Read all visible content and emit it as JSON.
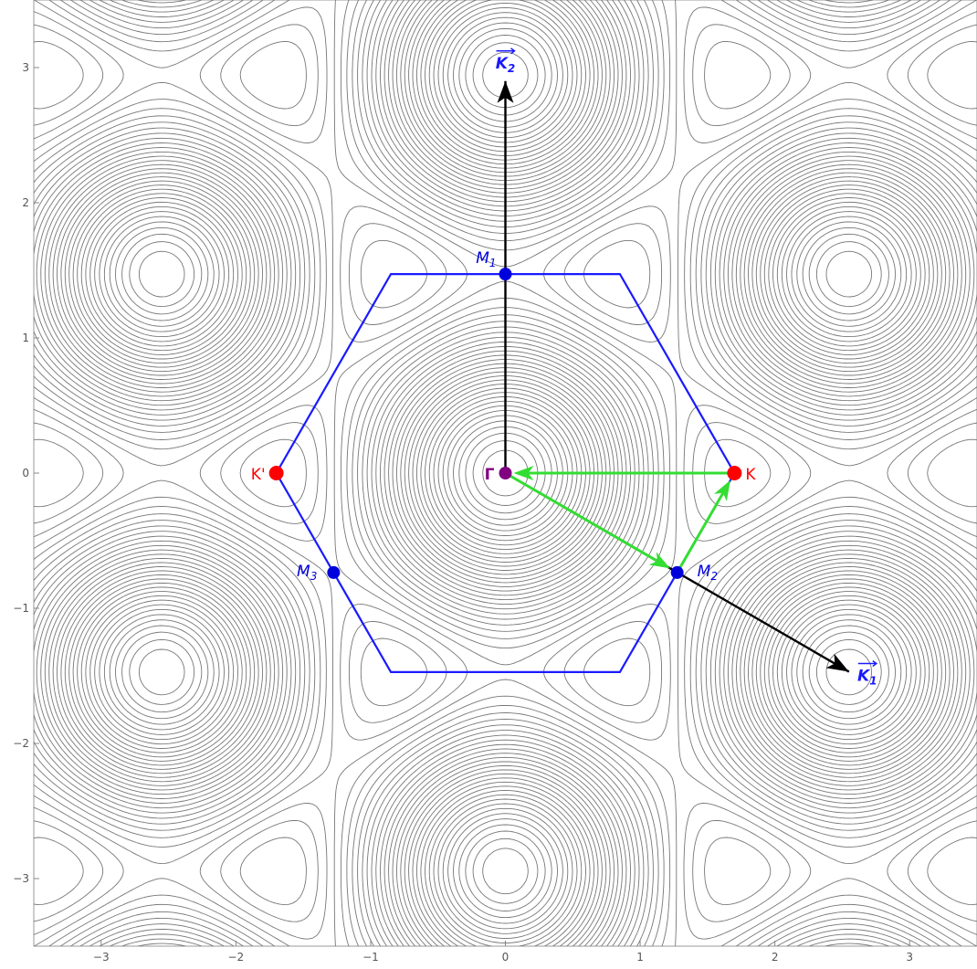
{
  "chart_data": {
    "type": "contour",
    "xlim": [
      -3.5,
      3.5
    ],
    "ylim": [
      -3.5,
      3.5
    ],
    "x_ticks": [
      -3,
      -2,
      -1,
      0,
      1,
      2,
      3
    ],
    "y_ticks": [
      -3,
      -2,
      -1,
      0,
      1,
      2,
      3
    ],
    "x_tick_labels": [
      "−3",
      "−2",
      "−1",
      "0",
      "1",
      "2",
      "3"
    ],
    "y_tick_labels": [
      "−3",
      "−2",
      "−1",
      "0",
      "1",
      "2",
      "3"
    ],
    "grid": false,
    "contour_levels": 34,
    "colors": {
      "contour": "#777777",
      "hexagon": "#1a1aff",
      "high_symmetry_K": "#ff0000",
      "high_symmetry_M": "#0000dd",
      "gamma": "#800080",
      "vectors": "#000000",
      "path": "#33dd33"
    },
    "hexagon_vertices": [
      [
        1.7,
        0
      ],
      [
        0.85,
        1.4722
      ],
      [
        -0.85,
        1.4722
      ],
      [
        -1.7,
        0
      ],
      [
        -0.85,
        -1.4722
      ],
      [
        0.85,
        -1.4722
      ]
    ],
    "points": [
      {
        "id": "Gamma",
        "label": "Γ",
        "x": 0,
        "y": 0
      },
      {
        "id": "K",
        "label": "K",
        "x": 1.7,
        "y": 0
      },
      {
        "id": "Kp",
        "label": "K'",
        "x": -1.7,
        "y": 0
      },
      {
        "id": "M1",
        "label": "M",
        "sub": "1",
        "x": 0,
        "y": 1.4722
      },
      {
        "id": "M2",
        "label": "M",
        "sub": "2",
        "x": 1.275,
        "y": -0.736
      },
      {
        "id": "M3",
        "label": "M",
        "sub": "3",
        "x": -1.275,
        "y": -0.736
      }
    ],
    "vectors": [
      {
        "label": "K",
        "sub": "2",
        "from": [
          0,
          0
        ],
        "to": [
          0,
          2.9
        ]
      },
      {
        "label": "K",
        "sub": "1",
        "from": [
          0,
          0
        ],
        "to": [
          2.55,
          -1.47
        ]
      }
    ],
    "path_arrows": [
      {
        "from": [
          0,
          0
        ],
        "to": [
          1.275,
          -0.736
        ]
      },
      {
        "from": [
          1.275,
          -0.736
        ],
        "to": [
          1.7,
          0
        ]
      },
      {
        "from": [
          1.7,
          0
        ],
        "to": [
          0,
          0
        ]
      }
    ]
  }
}
